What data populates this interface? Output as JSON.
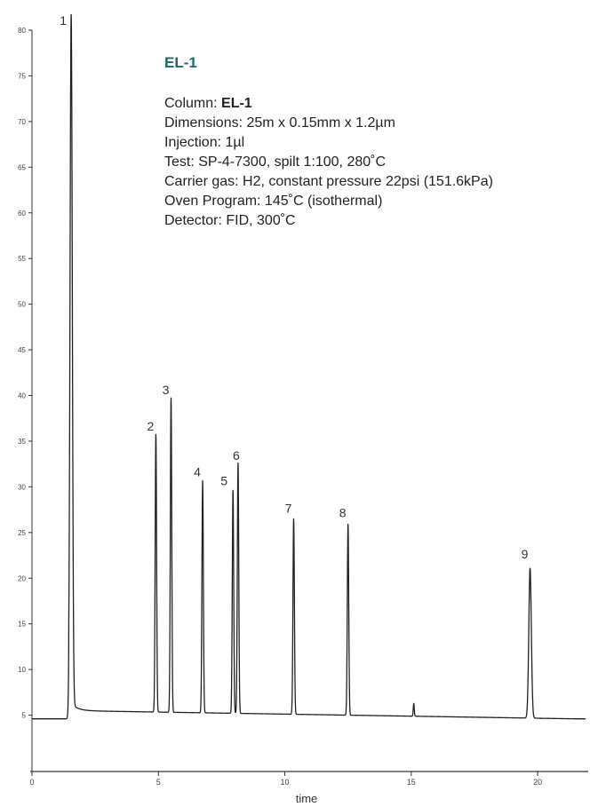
{
  "title": "EL-1",
  "info_lines": [
    {
      "label": "Column: ",
      "value": "EL-1"
    },
    {
      "label": "",
      "value": "Dimensions: 25m x 0.15mm x 1.2µm"
    },
    {
      "label": "",
      "value": "Injection: 1µl"
    },
    {
      "label": "",
      "value": "Test: SP-4-7300, spilt 1:100, 280˚C"
    },
    {
      "label": "",
      "value": "Carrier gas: H2, constant pressure 22psi (151.6kPa)"
    },
    {
      "label": "",
      "value": "Oven Program: 145˚C (isothermal)"
    },
    {
      "label": "",
      "value": "Detector: FID, 300˚C"
    }
  ],
  "colors": {
    "title": "#1a6b6f",
    "trace": "#222222",
    "axis": "#333333"
  },
  "chart_data": {
    "type": "line",
    "xlabel": "time",
    "ylabel": "",
    "xlim": [
      0,
      22
    ],
    "ylim": [
      0,
      80
    ],
    "x_ticks": [
      0,
      5,
      10,
      15,
      20
    ],
    "x_tick_labels": [
      "0",
      "5",
      "10",
      "15",
      "20"
    ],
    "y_ticks": [
      5,
      10,
      15,
      20,
      25,
      30,
      35,
      40,
      45,
      50,
      55,
      60,
      65,
      70,
      75,
      80
    ],
    "y_tick_labels": [
      "5",
      "10",
      "15",
      "20",
      "25",
      "30",
      "35",
      "40",
      "45",
      "50",
      "55",
      "60",
      "65",
      "70",
      "75",
      "80"
    ],
    "baseline": 4.6,
    "solvent_front": 1.45,
    "peaks": [
      {
        "label": "1",
        "x": 1.55,
        "y": 80
      },
      {
        "label": "2",
        "x": 4.9,
        "y": 35
      },
      {
        "label": "3",
        "x": 5.5,
        "y": 39
      },
      {
        "label": "4",
        "x": 6.75,
        "y": 30
      },
      {
        "label": "5",
        "x": 7.95,
        "y": 29
      },
      {
        "label": "6",
        "x": 8.15,
        "y": 32
      },
      {
        "label": "7",
        "x": 10.35,
        "y": 26
      },
      {
        "label": "8",
        "x": 12.5,
        "y": 25.5
      },
      {
        "label": "9",
        "x": 19.7,
        "y": 21
      }
    ],
    "minor_peaks": [
      {
        "x": 15.1,
        "y": 6
      }
    ],
    "grid": false
  }
}
